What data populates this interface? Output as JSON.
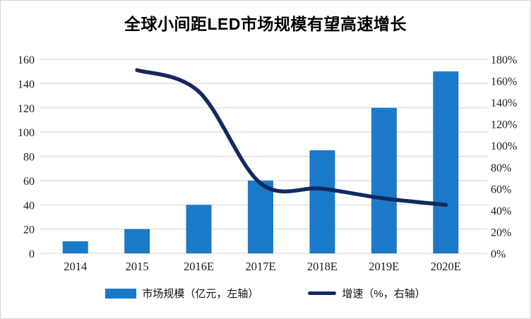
{
  "title": "全球小间距LED市场规模有望高速增长",
  "legend": {
    "bar_label": "市场规模（亿元，左轴）",
    "line_label": "增速（%，右轴）"
  },
  "colors": {
    "bar": "#1a7ac9",
    "line": "#132960",
    "grid": "#d9d9d9",
    "tick_text": "#1a1a1a",
    "frame_border": "#d6d6d6"
  },
  "chart_data": {
    "type": "bar+line",
    "title": "全球小间距LED市场规模有望高速增长",
    "categories": [
      "2014",
      "2015",
      "2016E",
      "2017E",
      "2018E",
      "2019E",
      "2020E"
    ],
    "series": [
      {
        "name": "市场规模（亿元，左轴）",
        "type": "bar",
        "axis": "left",
        "values": [
          10,
          20,
          40,
          60,
          85,
          120,
          150
        ]
      },
      {
        "name": "增速（%，右轴）",
        "type": "line",
        "axis": "right",
        "values": [
          null,
          170,
          150,
          65,
          60,
          51,
          45
        ]
      }
    ],
    "left_axis": {
      "min": 0,
      "max": 160,
      "step": 20,
      "tick_labels": [
        "0",
        "20",
        "40",
        "60",
        "80",
        "100",
        "120",
        "140",
        "160"
      ]
    },
    "right_axis": {
      "min": 0,
      "max": 180,
      "step": 20,
      "tick_labels": [
        "0%",
        "20%",
        "40%",
        "60%",
        "80%",
        "100%",
        "120%",
        "140%",
        "160%",
        "180%"
      ]
    },
    "grid": true,
    "legend_position": "bottom",
    "line_smooth": true
  }
}
